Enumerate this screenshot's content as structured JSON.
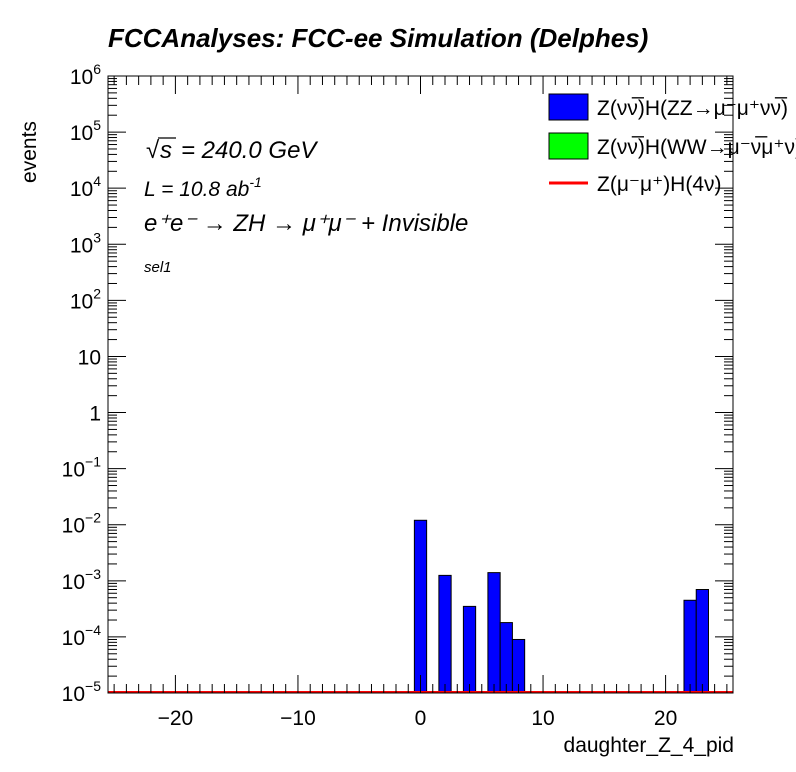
{
  "chart_data": {
    "type": "bar",
    "title": "FCCAnalyses: FCC-ee Simulation (Delphes)",
    "xlabel": "daughter_Z_4_pid",
    "ylabel": "events",
    "xlim": [
      -25.5,
      25.5
    ],
    "ylim": [
      1e-05,
      1000000
    ],
    "yscale": "log",
    "bin_width": 1,
    "x_ticks": [
      -20,
      -10,
      0,
      10,
      20
    ],
    "x_tick_labels": [
      "−20",
      "−10",
      "0",
      "10",
      "20"
    ],
    "y_ticks": [
      1e-05,
      0.0001,
      0.001,
      0.01,
      0.1,
      1,
      10,
      100,
      1000,
      10000,
      100000,
      1000000
    ],
    "y_tick_labels": [
      {
        "base": "10",
        "exp": "−5"
      },
      {
        "base": "10",
        "exp": "−4"
      },
      {
        "base": "10",
        "exp": "−3"
      },
      {
        "base": "10",
        "exp": "−2"
      },
      {
        "base": "10",
        "exp": "−1"
      },
      {
        "base": "1",
        "exp": ""
      },
      {
        "base": "10",
        "exp": ""
      },
      {
        "base": "10",
        "exp": "2"
      },
      {
        "base": "10",
        "exp": "3"
      },
      {
        "base": "10",
        "exp": "4"
      },
      {
        "base": "10",
        "exp": "5"
      },
      {
        "base": "10",
        "exp": "6"
      }
    ],
    "grid": false,
    "legend_position": "top-right",
    "series": [
      {
        "name": "Z(νν̅)H(ZZ→μ⁻μ⁺νν̅)",
        "kind": "filled",
        "color": "#0000ff",
        "bins": [
          {
            "x": 0,
            "value": 0.012
          },
          {
            "x": 2,
            "value": 0.00125
          },
          {
            "x": 4,
            "value": 0.00035
          },
          {
            "x": 6,
            "value": 0.0014
          },
          {
            "x": 7,
            "value": 0.00018
          },
          {
            "x": 8,
            "value": 9e-05
          },
          {
            "x": 22,
            "value": 0.00045
          },
          {
            "x": 23,
            "value": 0.0007
          }
        ]
      },
      {
        "name": "Z(νν̅)H(WW→μ⁻ν̅μ⁺ν)",
        "kind": "filled",
        "color": "#00ff00",
        "bins": []
      },
      {
        "name": "Z(μ⁻μ⁺)H(4ν)",
        "kind": "line",
        "color": "#ff0000",
        "bins": []
      }
    ],
    "annotations": {
      "sqrt_s": "= 240.0 GeV",
      "lumi_prefix": "L = 10.8 ab",
      "lumi_exp": "-1",
      "process": "e⁺e⁻ → ZH → μ⁺μ⁻ + Invisible",
      "selection": "sel1"
    }
  }
}
